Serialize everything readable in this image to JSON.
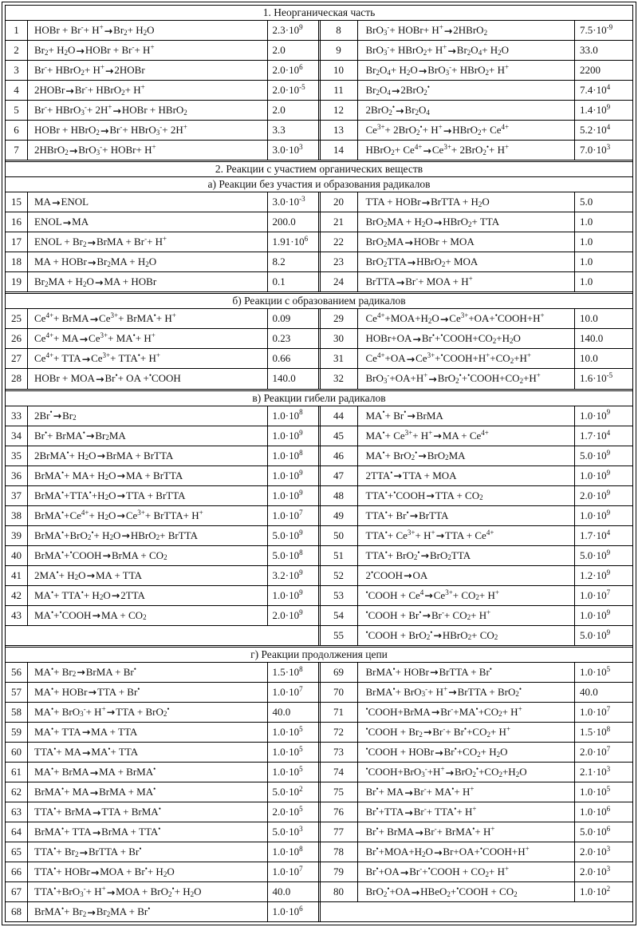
{
  "table": {
    "sections": [
      {
        "header": "1. Неорганическая часть",
        "left": [
          {
            "n": "1",
            "r": "HOBr + Br<sup>-</sup> + H<sup>+</sup> → Br<sub>2</sub> + H<sub>2</sub>O",
            "k": "2.3·10<sup>9</sup>"
          },
          {
            "n": "2",
            "r": "Br<sub>2</sub> + H<sub>2</sub>O → HOBr + Br<sup>-</sup> + H<sup>+</sup>",
            "k": "2.0"
          },
          {
            "n": "3",
            "r": "Br<sup>-</sup> + HBrO<sub>2</sub> + H<sup>+</sup> → 2HOBr",
            "k": "2.0·10<sup>6</sup>"
          },
          {
            "n": "4",
            "r": "2HOBr → Br<sup>-</sup> + HBrO<sub>2</sub> + H<sup>+</sup>",
            "k": "2.0·10<sup>-5</sup>"
          },
          {
            "n": "5",
            "r": "Br<sup>-</sup> + HBrO<sub>3</sub><sup>-</sup> + 2H<sup>+</sup> → HOBr + HBrO<sub>2</sub>",
            "k": "2.0"
          },
          {
            "n": "6",
            "r": "HOBr + HBrO<sub>2</sub> → Br<sup>-</sup> + HBrO<sub>3</sub><sup>-</sup> + 2H<sup>+</sup>",
            "k": "3.3"
          },
          {
            "n": "7",
            "r": "2HBrO<sub>2</sub> → BrO<sub>3</sub><sup>-</sup> + HOBr+ H<sup>+</sup>",
            "k": "3.0·10<sup>3</sup>"
          }
        ],
        "right": [
          {
            "n": "8",
            "r": "BrO<sub>3</sub><sup>-</sup> + HOBr+ H<sup>+</sup> →2HBrO<sub>2</sub>",
            "k": "7.5·10<sup>-9</sup>"
          },
          {
            "n": "9",
            "r": "BrO<sub>3</sub><sup>-</sup> + HBrO<sub>2</sub> + H<sup>+</sup> →Br<sub>2</sub>O<sub>4</sub> + H<sub>2</sub>O",
            "k": "33.0"
          },
          {
            "n": "10",
            "r": "Br<sub>2</sub>O<sub>4</sub> + H<sub>2</sub>O→ BrO<sub>3</sub><sup>-</sup> + HBrO<sub>2</sub> + H<sup>+</sup>",
            "k": "2200"
          },
          {
            "n": "11",
            "r": "Br<sub>2</sub>O<sub>4</sub> →2BrO<sub>2</sub><sup>•</sup>",
            "k": "7.4·10<sup>4</sup>"
          },
          {
            "n": "12",
            "r": "2BrO<sub>2</sub><sup>•</sup> →Br<sub>2</sub>O<sub>4</sub>",
            "k": "1.4·10<sup>9</sup>"
          },
          {
            "n": "13",
            "r": "Ce<sup>3+</sup> + 2BrO<sub>2</sub><sup>•</sup>+ H<sup>+</sup>→HBrO<sub>2</sub>+ Ce<sup>4+</sup>",
            "k": "5.2·10<sup>4</sup>"
          },
          {
            "n": "14",
            "r": "HBrO<sub>2</sub>+ Ce<sup>4+</sup>→ Ce<sup>3+</sup> + 2BrO<sub>2</sub><sup>•</sup>+ H<sup>+</sup>",
            "k": "7.0·10<sup>3</sup>"
          }
        ]
      },
      {
        "header": "2. Реакции с участием органических веществ",
        "left": [],
        "right": []
      },
      {
        "header": "а) Реакции без участия и образования радикалов",
        "left": [
          {
            "n": "15",
            "r": "MA → ENOL",
            "k": "3.0·10<sup>-3</sup>"
          },
          {
            "n": "16",
            "r": "ENOL → MA",
            "k": "200.0"
          },
          {
            "n": "17",
            "r": "ENOL + Br<sub>2</sub> → BrMA + Br<sup>-</sup> + H<sup>+</sup>",
            "k": "1.91·10<sup>6</sup>"
          },
          {
            "n": "18",
            "r": "MA + HOBr → Br<sub>2</sub>MA + H<sub>2</sub>O",
            "k": "8.2"
          },
          {
            "n": "19",
            "r": "Br<sub>2</sub>MA + H<sub>2</sub>O → MA + HOBr",
            "k": "0.1"
          }
        ],
        "right": [
          {
            "n": "20",
            "r": "TTA + HOBr → BrTTA + H<sub>2</sub>O",
            "k": "5.0"
          },
          {
            "n": "21",
            "r": "BrO<sub>2</sub>MA + H<sub>2</sub>O → HBrO<sub>2</sub> + TTA",
            "k": "1.0"
          },
          {
            "n": "22",
            "r": "BrO<sub>2</sub>MA → HOBr + MOA",
            "k": "1.0"
          },
          {
            "n": "23",
            "r": "BrO<sub>2</sub>TTA→ HBrO<sub>2</sub> + MOA",
            "k": "1.0"
          },
          {
            "n": "24",
            "r": "BrTTA → Br<sup>-</sup> + MOA + H<sup>+</sup>",
            "k": "1.0"
          }
        ]
      },
      {
        "header": "б) Реакции с образованием радикалов",
        "left": [
          {
            "n": "25",
            "r": "Ce<sup>4+</sup> + BrMA → Ce<sup>3+</sup>+ BrMA<sup>•</sup> + H<sup>+</sup>",
            "k": "0.09"
          },
          {
            "n": "26",
            "r": "Ce<sup>4+</sup> + MA → Ce<sup>3+</sup>+ MA<sup>•</sup> + H<sup>+</sup>",
            "k": "0.23"
          },
          {
            "n": "27",
            "r": "Ce<sup>4+</sup> + TTA → Ce<sup>3+</sup>+ TTA<sup>•</sup> + H<sup>+</sup>",
            "k": "0.66"
          },
          {
            "n": "28",
            "r": "HOBr + MOA → Br<sup>•</sup> + OA + <sup>•</sup>COOH",
            "k": "140.0"
          }
        ],
        "right": [
          {
            "n": "29",
            "r": "Ce<sup>4+</sup>+MOA+H<sub>2</sub>O→Ce<sup>3+</sup>+OA+<sup>•</sup>COOH+H<sup>+</sup>",
            "k": "10.0"
          },
          {
            "n": "30",
            "r": "HOBr+OA→Br<sup>•</sup>+<sup>•</sup>COOH+CO<sub>2</sub>+H<sub>2</sub>O",
            "k": "140.0"
          },
          {
            "n": "31",
            "r": "Ce<sup>4+</sup>+OA→Ce<sup>3+</sup>+<sup>•</sup>COOH+H<sup>+</sup>+CO<sub>2</sub>+H<sup>+</sup>",
            "k": "10.0"
          },
          {
            "n": "32",
            "r": "BrO<sub>3</sub><sup>-</sup>+OA+H<sup>+</sup>→ BrO<sub>2</sub><sup>•</sup>+<sup>•</sup>COOH+CO<sub>2</sub>+H<sup>+</sup>",
            "k": "1.6·10<sup>-5</sup>"
          }
        ]
      },
      {
        "header": "в) Реакции гибели радикалов",
        "left": [
          {
            "n": "33",
            "r": "2Br<sup>•</sup> → Br<sub>2</sub>",
            "k": "1.0·10<sup>8</sup>"
          },
          {
            "n": "34",
            "r": "Br<sup>•</sup>+ BrMA<sup>•</sup> → Br<sub>2</sub>MA",
            "k": "1.0·10<sup>9</sup>"
          },
          {
            "n": "35",
            "r": "2BrMA<sup>•</sup>+ H<sub>2</sub>O→ BrMA + BrTTA",
            "k": "1.0·10<sup>8</sup>"
          },
          {
            "n": "36",
            "r": "BrMA<sup>•</sup>+ MA+ H<sub>2</sub>O →MA + BrTTA",
            "k": "1.0·10<sup>9</sup>"
          },
          {
            "n": "37",
            "r": "BrMA<sup>•</sup>+TTA<sup>•</sup>+H<sub>2</sub>O→ TTA + BrTTA",
            "k": "1.0·10<sup>9</sup>"
          },
          {
            "n": "38",
            "r": "BrMA<sup>•</sup> +Ce<sup>4+</sup>+ H<sub>2</sub>O → Ce<sup>3+</sup> + BrTTA+ H<sup>+</sup>",
            "k": "1.0·10<sup>7</sup>"
          },
          {
            "n": "39",
            "r": "BrMA<sup>•</sup> +BrO<sub>2</sub><sup>•</sup>+ H<sub>2</sub>O →HBrO<sub>2</sub> + BrTTA",
            "k": "5.0·10<sup>9</sup>"
          },
          {
            "n": "40",
            "r": "BrMA<sup>•</sup>+ <sup>•</sup>COOH → BrMA + CO<sub>2</sub>",
            "k": "5.0·10<sup>8</sup>"
          },
          {
            "n": "41",
            "r": "2MA<sup>•</sup>+ H<sub>2</sub>O → MA + TTA",
            "k": "3.2·10<sup>9</sup>"
          },
          {
            "n": "42",
            "r": "MA<sup>•</sup>+ TTA<sup>•</sup> + H<sub>2</sub>O → 2TTA",
            "k": "1.0·10<sup>9</sup>"
          },
          {
            "n": "43",
            "r": "MA<sup>•</sup>+<sup>•</sup>COOH → MA + CO<sub>2</sub>",
            "k": "2.0·10<sup>9</sup>"
          }
        ],
        "right": [
          {
            "n": "44",
            "r": "MA<sup>•</sup> + Br<sup>•</sup> → BrMA",
            "k": "1.0·10<sup>9</sup>"
          },
          {
            "n": "45",
            "r": "MA<sup>•</sup> + Ce<sup>3+</sup> + H<sup>+</sup>→MA + Ce<sup>4+</sup>",
            "k": "1.7·10<sup>4</sup>"
          },
          {
            "n": "46",
            "r": "MA<sup>•</sup> + BrO<sub>2</sub><sup>•</sup>→BrO<sub>2</sub>MA",
            "k": "5.0·10<sup>9</sup>"
          },
          {
            "n": "47",
            "r": "2TTA<sup>•</sup> →TTA + MOA",
            "k": "1.0·10<sup>9</sup>"
          },
          {
            "n": "48",
            "r": "TTA<sup>•</sup>+<sup>•</sup>COOH→TTA + CO<sub>2</sub>",
            "k": "2.0·10<sup>9</sup>"
          },
          {
            "n": "49",
            "r": "TTA<sup>•</sup>+ Br<sup>•</sup>→ BrTTA",
            "k": "1.0·10<sup>9</sup>"
          },
          {
            "n": "50",
            "r": "TTA<sup>•</sup>+ Ce<sup>3+</sup> + H<sup>+</sup>→ TTA  + Ce<sup>4+</sup>",
            "k": "1.7·10<sup>4</sup>"
          },
          {
            "n": "51",
            "r": "TTA<sup>•</sup>+ BrO<sub>2</sub><sup>•</sup>→BrO<sub>2</sub>TTA",
            "k": "5.0·10<sup>9</sup>"
          },
          {
            "n": "52",
            "r": "2<sup>•</sup>COOH → OA",
            "k": "1.2·10<sup>9</sup>"
          },
          {
            "n": "53",
            "r": "<sup>•</sup>COOH + Ce<sup>4</sup>→ Ce<sup>3+</sup> + CO<sub>2</sub> + H<sup>+</sup>",
            "k": "1.0·10<sup>7</sup>"
          },
          {
            "n": "54",
            "r": "<sup>•</sup>COOH + Br<sup>•</sup> → Br<sup>-</sup>+ CO<sub>2</sub>+ H<sup>+</sup>",
            "k": "1.0·10<sup>9</sup>"
          },
          {
            "n": "55",
            "r": "<sup>•</sup>COOH + BrO<sub>2</sub><sup>•</sup>→ HBrO<sub>2</sub> + CO<sub>2</sub>",
            "k": "5.0·10<sup>9</sup>"
          }
        ]
      },
      {
        "header": "г) Реакции продолжения цепи",
        "left": [
          {
            "n": "56",
            "r": "MA<sup>•</sup> + Br<sub>2</sub> → BrMA + Br<sup>•</sup>",
            "k": "1.5·10<sup>8</sup>"
          },
          {
            "n": "57",
            "r": "MA<sup>•</sup> + HOBr → TTA + Br<sup>•</sup>",
            "k": "1.0·10<sup>7</sup>"
          },
          {
            "n": "58",
            "r": "MA<sup>•</sup> + BrO<sub>3</sub><sup>-</sup> + H<sup>+</sup>→ TTA + BrO<sub>2</sub><sup>•</sup>",
            "k": "40.0"
          },
          {
            "n": "59",
            "r": "MA<sup>•</sup> + TTA → MA + TTA",
            "k": "1.0·10<sup>5</sup>"
          },
          {
            "n": "60",
            "r": "TTA<sup>•</sup> + MA → MA<sup>•</sup> + TTA",
            "k": "1.0·10<sup>5</sup>"
          },
          {
            "n": "61",
            "r": "MA<sup>•</sup> + BrMA → MA + BrMA<sup>•</sup>",
            "k": "1.0·10<sup>5</sup>"
          },
          {
            "n": "62",
            "r": "BrMA<sup>•</sup> + MA → BrMA + MA<sup>•</sup>",
            "k": "5.0·10<sup>2</sup>"
          },
          {
            "n": "63",
            "r": "TTA<sup>•</sup> + BrMA → TTA + BrMA<sup>•</sup>",
            "k": "2.0·10<sup>5</sup>"
          },
          {
            "n": "64",
            "r": "BrMA<sup>•</sup> + TTA → BrMA + TTA<sup>•</sup>",
            "k": "5.0·10<sup>3</sup>"
          },
          {
            "n": "65",
            "r": "TTA<sup>•</sup> + Br<sub>2</sub> → BrTTA + Br<sup>•</sup>",
            "k": "1.0·10<sup>8</sup>"
          },
          {
            "n": "66",
            "r": "TTA<sup>•</sup> + HOBr → MOA + Br<sup>•</sup> + H<sub>2</sub>O",
            "k": "1.0·10<sup>7</sup>"
          },
          {
            "n": "67",
            "r": "TTA<sup>•</sup> +BrO<sub>3</sub><sup>-</sup> + H<sup>+</sup>→ MOA + BrO<sub>2</sub><sup>•</sup> + H<sub>2</sub>O",
            "k": "40.0"
          },
          {
            "n": "68",
            "r": "BrMA<sup>•</sup> + Br<sub>2</sub> → Br<sub>2</sub>MA + Br<sup>•</sup>",
            "k": "1.0·10<sup>6</sup>"
          }
        ],
        "right": [
          {
            "n": "69",
            "r": "BrMA<sup>•</sup> + HOBr → BrTTA + Br<sup>•</sup>",
            "k": "1.0·10<sup>5</sup>"
          },
          {
            "n": "70",
            "r": "BrMA<sup>•</sup> + BrO<sub>3</sub><sup>-</sup> + H<sup>+</sup>→BrTTA + BrO<sub>2</sub><sup>•</sup>",
            "k": "40.0"
          },
          {
            "n": "71",
            "r": "<sup>•</sup>COOH+BrMA→Br<sup>-</sup> +MA<sup>•</sup> +CO<sub>2</sub> + H<sup>+</sup>",
            "k": "1.0·10<sup>7</sup>"
          },
          {
            "n": "72",
            "r": "<sup>•</sup>COOH + Br<sub>2</sub> →Br<sup>-</sup> + Br<sup>•</sup> +CO<sub>2</sub> + H<sup>+</sup>",
            "k": "1.5·10<sup>8</sup>"
          },
          {
            "n": "73",
            "r": "<sup>•</sup>COOH + HOBr → Br<sup>•</sup> +CO<sub>2</sub> + H<sub>2</sub>O",
            "k": "2.0·10<sup>7</sup>"
          },
          {
            "n": "74",
            "r": "<sup>•</sup>COOH+BrO<sub>3</sub><sup>-</sup>+H<sup>+</sup>→BrO<sub>2</sub><sup>•</sup>+CO<sub>2</sub>+H<sub>2</sub>O",
            "k": "2.1·10<sup>3</sup>"
          },
          {
            "n": "75",
            "r": "Br<sup>•</sup> + MA → Br<sup>-</sup> + MA<sup>•</sup> + H<sup>+</sup>",
            "k": "1.0·10<sup>5</sup>"
          },
          {
            "n": "76",
            "r": "Br<sup>•</sup> +TTA → Br<sup>-</sup> + TTA<sup>•</sup> + H<sup>+</sup>",
            "k": "1.0·10<sup>6</sup>"
          },
          {
            "n": "77",
            "r": "Br<sup>•</sup> + BrMA → Br<sup>-</sup> + BrMA<sup>•</sup> + H<sup>+</sup>",
            "k": "5.0·10<sup>6</sup>"
          },
          {
            "n": "78",
            "r": "Br<sup>•</sup>+MOA+H<sub>2</sub>O→Br+OA+<sup>•</sup>COOH+H<sup>+</sup>",
            "k": "2.0·10<sup>3</sup>"
          },
          {
            "n": "79",
            "r": "Br<sup>•</sup> +OA → Br<sup>-</sup> + <sup>•</sup>COOH + CO<sub>2</sub>+ H<sup>+</sup>",
            "k": "2.0·10<sup>3</sup>"
          },
          {
            "n": "80",
            "r": "BrO<sub>2</sub><sup>•</sup>+OA→HBeO<sub>2</sub> + <sup>•</sup>COOH + CO<sub>2</sub>",
            "k": "1.0·10<sup>2</sup>"
          }
        ]
      }
    ]
  }
}
